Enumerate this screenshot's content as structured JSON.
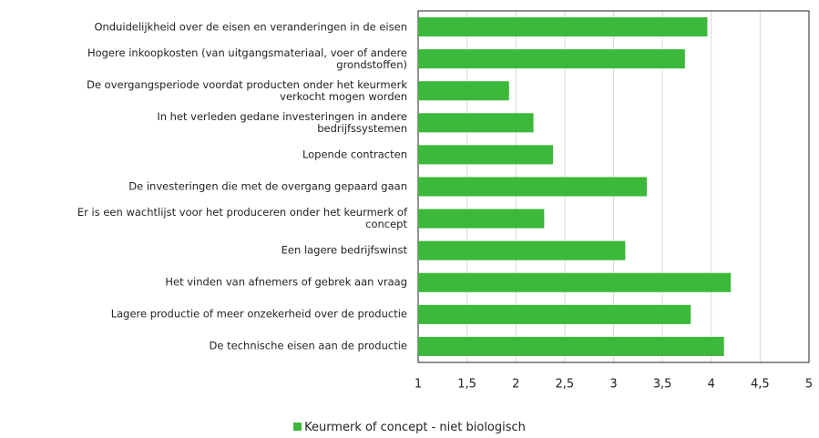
{
  "chart_data": {
    "type": "bar",
    "orientation": "horizontal",
    "categories": [
      "Onduidelijkheid over de eisen en veranderingen in de eisen",
      "Hogere inkoopkosten (van uitgangsmateriaal, voer of andere\ngrondstoffen)",
      "De overgangsperiode voordat producten onder het keurmerk\nverkocht mogen worden",
      "In het verleden gedane investeringen in andere\nbedrijfssystemen",
      "Lopende contracten",
      "De investeringen die met de overgang gepaard gaan",
      "Er is een wachtlijst voor het produceren onder het keurmerk of\nconcept",
      "Een lagere bedrijfswinst",
      "Het vinden van afnemers of gebrek aan vraag",
      "Lagere productie of meer onzekerheid over de productie",
      "De technische eisen aan de productie"
    ],
    "series": [
      {
        "name": "Keurmerk of concept - niet biologisch",
        "color": "#3cb83a",
        "values": [
          3.96,
          3.73,
          1.93,
          2.18,
          2.38,
          3.34,
          2.29,
          3.12,
          4.2,
          3.79,
          4.13
        ]
      }
    ],
    "xlim": [
      1,
      5
    ],
    "xticks": [
      1,
      {
        "value": 1.5,
        "label": "1,5"
      },
      2,
      {
        "value": 2.5,
        "label": "2,5"
      },
      3,
      {
        "value": 3.5,
        "label": "3,5"
      },
      4,
      {
        "value": 4.5,
        "label": "4,5"
      },
      5
    ],
    "grid": true,
    "legend": "bottom"
  }
}
